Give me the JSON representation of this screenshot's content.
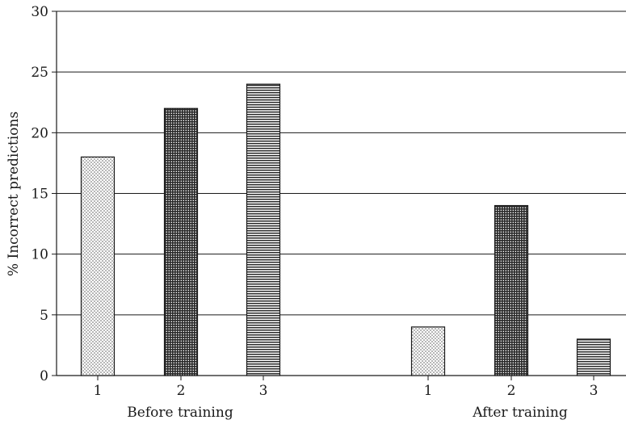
{
  "chart_data": {
    "type": "bar",
    "title": "",
    "xlabel": "",
    "ylabel": "% Incorrect predictions",
    "ylim": [
      0,
      30
    ],
    "yticks": [
      0,
      5,
      10,
      15,
      20,
      25,
      30
    ],
    "grid": true,
    "groups": [
      {
        "label": "Before training",
        "categories": [
          "1",
          "2",
          "3"
        ],
        "values": [
          18,
          22,
          24
        ],
        "patterns": [
          "dots",
          "grid",
          "horizontal-lines"
        ]
      },
      {
        "label": "After training",
        "categories": [
          "1",
          "2",
          "3"
        ],
        "values": [
          4,
          14,
          3
        ],
        "patterns": [
          "dots",
          "grid",
          "horizontal-lines"
        ]
      }
    ],
    "colors": {
      "stroke": "#1a1a1a",
      "background": "#ffffff"
    }
  }
}
